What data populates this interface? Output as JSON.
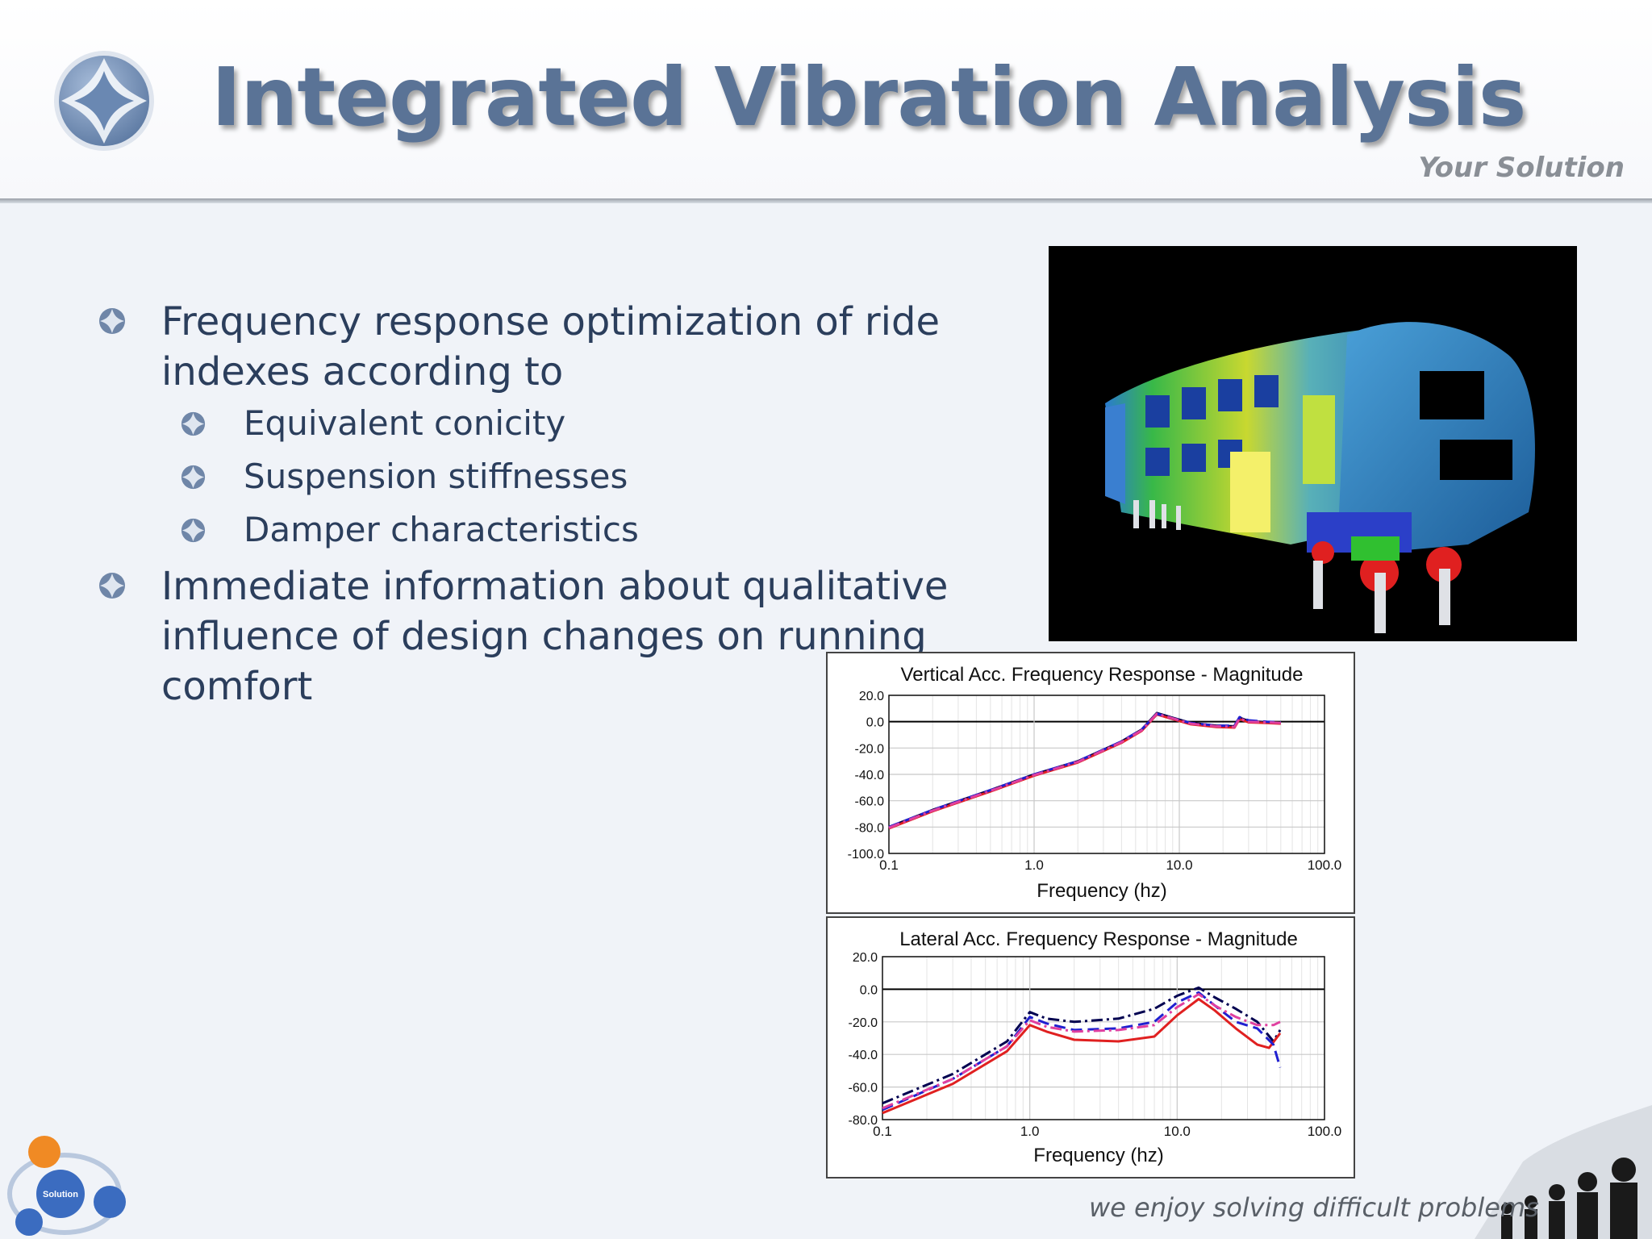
{
  "slide": {
    "title": "Integrated Vibration Analysis",
    "tagline_top": "Your Solution",
    "tagline_bottom": "we enjoy solving difficult problems"
  },
  "bullets": [
    {
      "level": 1,
      "text": "Frequency response optimization of ride indexes according to"
    },
    {
      "level": 2,
      "text": "Equivalent conicity"
    },
    {
      "level": 2,
      "text": "Suspension stiffnesses"
    },
    {
      "level": 2,
      "text": "Damper characteristics"
    },
    {
      "level": 1,
      "text": "Immediate information about qualitative influence of design changes on running comfort"
    }
  ],
  "logo_labels": [
    "Solution"
  ],
  "chart_data": [
    {
      "type": "line",
      "title": "Vertical Acc. Frequency Response - Magnitude",
      "xlabel": "Frequency (hz)",
      "ylabel": "",
      "xscale": "log",
      "xlim": [
        0.1,
        100.0
      ],
      "ylim": [
        -100.0,
        20.0
      ],
      "xticks": [
        "0.1",
        "1.0",
        "10.0",
        "100.0"
      ],
      "yticks": [
        "20.0",
        "0.0",
        "-20.0",
        "-40.0",
        "-60.0",
        "-80.0",
        "-100.0"
      ],
      "grid": true,
      "series": [
        {
          "color": "#000050",
          "style": "solid",
          "points": [
            [
              0.1,
              -80
            ],
            [
              0.2,
              -67
            ],
            [
              0.5,
              -52
            ],
            [
              1.0,
              -40
            ],
            [
              2.0,
              -30
            ],
            [
              4.0,
              -15
            ],
            [
              5.5,
              -6
            ],
            [
              7.0,
              6.5
            ],
            [
              9.0,
              3
            ],
            [
              12,
              -1
            ],
            [
              18,
              -3
            ],
            [
              24,
              -3.5
            ],
            [
              26,
              3
            ],
            [
              30,
              0.5
            ],
            [
              40,
              -0.5
            ],
            [
              50,
              -1
            ]
          ]
        },
        {
          "color": "#e02020",
          "style": "solid",
          "points": [
            [
              0.1,
              -81
            ],
            [
              0.2,
              -68
            ],
            [
              0.5,
              -53
            ],
            [
              1.0,
              -41
            ],
            [
              2.0,
              -31
            ],
            [
              4.0,
              -16
            ],
            [
              5.5,
              -7
            ],
            [
              7.0,
              5.5
            ],
            [
              9.0,
              2
            ],
            [
              12,
              -2
            ],
            [
              18,
              -4
            ],
            [
              24,
              -4.5
            ],
            [
              26,
              2
            ],
            [
              30,
              -0.5
            ],
            [
              40,
              -1
            ],
            [
              50,
              -1.5
            ]
          ]
        },
        {
          "color": "#2020d0",
          "style": "dashed",
          "points": [
            [
              0.1,
              -80
            ],
            [
              0.2,
              -67
            ],
            [
              0.5,
              -52
            ],
            [
              1.0,
              -40
            ],
            [
              2.0,
              -30
            ],
            [
              4.0,
              -15
            ],
            [
              5.5,
              -6
            ],
            [
              7.0,
              6
            ],
            [
              9.0,
              2.5
            ],
            [
              12,
              -1
            ],
            [
              18,
              -3
            ],
            [
              24,
              -3
            ],
            [
              26,
              3.5
            ],
            [
              30,
              1
            ],
            [
              40,
              0
            ],
            [
              50,
              -0.5
            ]
          ]
        },
        {
          "color": "#e040a0",
          "style": "dashdot",
          "points": [
            [
              0.1,
              -80.5
            ],
            [
              0.2,
              -67.5
            ],
            [
              0.5,
              -52.5
            ],
            [
              1.0,
              -40.5
            ],
            [
              2.0,
              -30.5
            ],
            [
              4.0,
              -15.5
            ],
            [
              5.5,
              -6.5
            ],
            [
              7.0,
              6
            ],
            [
              9.0,
              2.5
            ],
            [
              12,
              -1.5
            ],
            [
              18,
              -3.5
            ],
            [
              24,
              -4
            ],
            [
              26,
              2.5
            ],
            [
              30,
              0
            ],
            [
              40,
              -0.5
            ],
            [
              50,
              -1
            ]
          ]
        }
      ]
    },
    {
      "type": "line",
      "title": "Lateral Acc. Frequency Response - Magnitude",
      "xlabel": "Frequency (hz)",
      "ylabel": "",
      "xscale": "log",
      "xlim": [
        0.1,
        100.0
      ],
      "ylim": [
        -80.0,
        20.0
      ],
      "xticks": [
        "0.1",
        "1.0",
        "10.0",
        "100.0"
      ],
      "yticks": [
        "20.0",
        "0.0",
        "-20.0",
        "-40.0",
        "-60.0",
        "-80.0"
      ],
      "grid": true,
      "series": [
        {
          "color": "#000050",
          "style": "dashdot",
          "points": [
            [
              0.1,
              -70
            ],
            [
              0.3,
              -52
            ],
            [
              0.7,
              -32
            ],
            [
              1.0,
              -14
            ],
            [
              1.3,
              -18
            ],
            [
              2.0,
              -20
            ],
            [
              4.0,
              -18
            ],
            [
              7.0,
              -12
            ],
            [
              10,
              -4
            ],
            [
              14,
              1
            ],
            [
              18,
              -5
            ],
            [
              25,
              -12
            ],
            [
              35,
              -20
            ],
            [
              45,
              -32
            ],
            [
              50,
              -25
            ]
          ]
        },
        {
          "color": "#e02020",
          "style": "solid",
          "points": [
            [
              0.1,
              -76
            ],
            [
              0.3,
              -58
            ],
            [
              0.7,
              -38
            ],
            [
              1.0,
              -22
            ],
            [
              1.3,
              -26
            ],
            [
              2.0,
              -31
            ],
            [
              4.0,
              -32
            ],
            [
              7.0,
              -29
            ],
            [
              10,
              -16
            ],
            [
              14,
              -6
            ],
            [
              18,
              -13
            ],
            [
              25,
              -24
            ],
            [
              35,
              -34
            ],
            [
              42,
              -36
            ],
            [
              50,
              -27
            ]
          ]
        },
        {
          "color": "#2020d0",
          "style": "dashed",
          "points": [
            [
              0.1,
              -74
            ],
            [
              0.3,
              -55
            ],
            [
              0.7,
              -35
            ],
            [
              1.0,
              -17
            ],
            [
              1.3,
              -21
            ],
            [
              2.0,
              -25
            ],
            [
              4.0,
              -24
            ],
            [
              7.0,
              -20
            ],
            [
              10,
              -8
            ],
            [
              14,
              -2
            ],
            [
              18,
              -10
            ],
            [
              25,
              -20
            ],
            [
              35,
              -24
            ],
            [
              45,
              -34
            ],
            [
              50,
              -48
            ]
          ]
        },
        {
          "color": "#e040a0",
          "style": "dashdot",
          "points": [
            [
              0.1,
              -73
            ],
            [
              0.3,
              -55
            ],
            [
              0.7,
              -35
            ],
            [
              1.0,
              -19
            ],
            [
              1.3,
              -23
            ],
            [
              2.0,
              -26
            ],
            [
              4.0,
              -25
            ],
            [
              7.0,
              -22
            ],
            [
              10,
              -11
            ],
            [
              14,
              -3
            ],
            [
              18,
              -10
            ],
            [
              25,
              -17
            ],
            [
              35,
              -22
            ],
            [
              45,
              -22
            ],
            [
              50,
              -20
            ]
          ]
        }
      ]
    }
  ]
}
